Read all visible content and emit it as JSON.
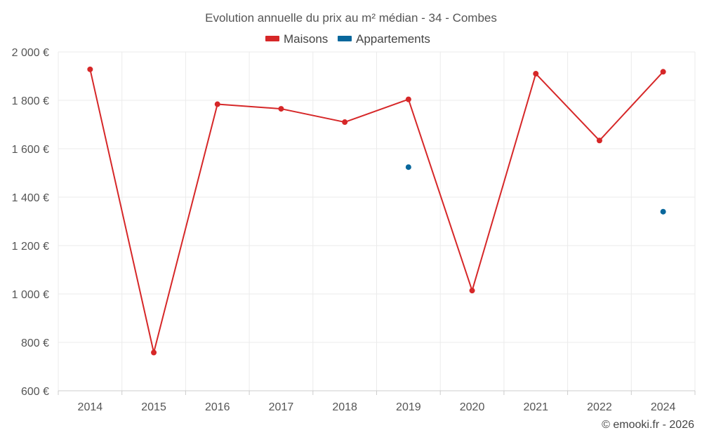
{
  "chart_data": {
    "type": "line",
    "title": "Evolution annuelle du prix au m² médian - 34 - Combes",
    "categories": [
      "2014",
      "2015",
      "2016",
      "2017",
      "2018",
      "2019",
      "2020",
      "2021",
      "2022",
      "2024"
    ],
    "series": [
      {
        "name": "Maisons",
        "color": "#d62728",
        "style": "line-markers",
        "values": [
          1928,
          758,
          1784,
          1765,
          1710,
          1804,
          1014,
          1910,
          1634,
          1918
        ]
      },
      {
        "name": "Appartements",
        "color": "#08679c",
        "style": "markers",
        "values": [
          null,
          null,
          null,
          null,
          null,
          1524,
          null,
          null,
          null,
          1340
        ]
      }
    ],
    "ylim": [
      600,
      2000
    ],
    "yticks": [
      {
        "value": 600,
        "label": "600 €"
      },
      {
        "value": 800,
        "label": "800 €"
      },
      {
        "value": 1000,
        "label": "1 000 €"
      },
      {
        "value": 1200,
        "label": "1 200 €"
      },
      {
        "value": 1400,
        "label": "1 400 €"
      },
      {
        "value": 1600,
        "label": "1 600 €"
      },
      {
        "value": 1800,
        "label": "1 800 €"
      },
      {
        "value": 2000,
        "label": "2 000 €"
      }
    ],
    "grid": true,
    "legend": "top-center",
    "credit": "© emooki.fr - 2026"
  }
}
